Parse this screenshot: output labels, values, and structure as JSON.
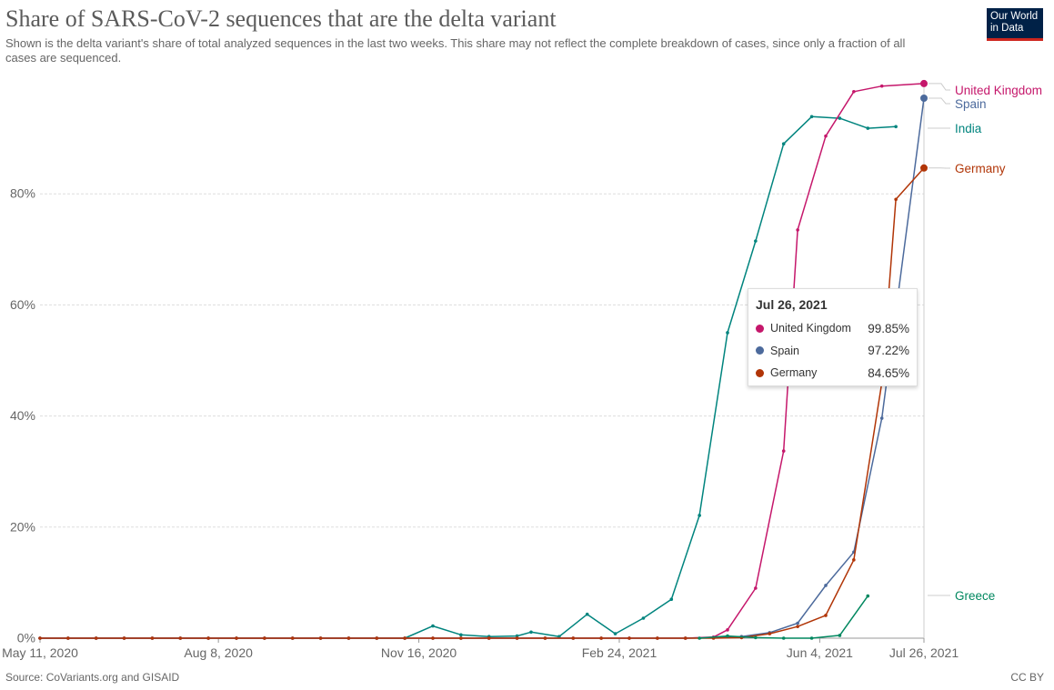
{
  "header": {
    "title": "Share of SARS-CoV-2 sequences that are the delta variant",
    "subtitle": "Shown is the delta variant's share of total analyzed sequences in the last two weeks. This share may not reflect the complete breakdown of cases, since only a fraction of all cases are sequenced.",
    "logo_line1": "Our World",
    "logo_line2": "in Data"
  },
  "footer": {
    "source": "Source: CoVariants.org and GISAID",
    "license": "CC BY"
  },
  "tooltip": {
    "date": "Jul 26, 2021",
    "rows": [
      {
        "name": "United Kingdom",
        "value": "99.85%",
        "color": "#c5176b"
      },
      {
        "name": "Spain",
        "value": "97.22%",
        "color": "#4c6a9c"
      },
      {
        "name": "Germany",
        "value": "84.65%",
        "color": "#b13507"
      }
    ]
  },
  "chart_data": {
    "type": "line",
    "ylim": [
      0,
      100
    ],
    "yticks": [
      0,
      20,
      40,
      60,
      80
    ],
    "ytick_labels": [
      "0%",
      "20%",
      "40%",
      "60%",
      "80%"
    ],
    "xlim": [
      "2020-05-11",
      "2021-07-26"
    ],
    "xticks": [
      "2020-05-11",
      "2020-08-08",
      "2020-11-16",
      "2021-02-24",
      "2021-06-04",
      "2021-07-26"
    ],
    "xtick_labels": [
      "May 11, 2020",
      "Aug 8, 2020",
      "Nov 16, 2020",
      "Feb 24, 2021",
      "Jun 4, 2021",
      "Jul 26, 2021"
    ],
    "grid": "horizontal dashed",
    "legend_placement": "right (line-end labels)",
    "hover_date": "2021-07-26",
    "series": [
      {
        "name": "India",
        "color": "#00847e",
        "points": [
          [
            "2020-05-11",
            0
          ],
          [
            "2020-05-25",
            0
          ],
          [
            "2020-06-08",
            0
          ],
          [
            "2020-06-22",
            0
          ],
          [
            "2020-07-06",
            0
          ],
          [
            "2020-07-20",
            0
          ],
          [
            "2020-08-03",
            0
          ],
          [
            "2020-08-17",
            0
          ],
          [
            "2020-08-31",
            0
          ],
          [
            "2020-09-14",
            0
          ],
          [
            "2020-09-28",
            0
          ],
          [
            "2020-10-12",
            0
          ],
          [
            "2020-10-26",
            0
          ],
          [
            "2020-11-09",
            0
          ],
          [
            "2020-11-23",
            2.2
          ],
          [
            "2020-12-07",
            0.6
          ],
          [
            "2020-12-21",
            0.3
          ],
          [
            "2021-01-04",
            0.4
          ],
          [
            "2021-01-11",
            1.1
          ],
          [
            "2021-01-25",
            0.3
          ],
          [
            "2021-02-08",
            4.3
          ],
          [
            "2021-02-22",
            0.8
          ],
          [
            "2021-03-08",
            3.6
          ],
          [
            "2021-03-22",
            7.0
          ],
          [
            "2021-04-05",
            22.1
          ],
          [
            "2021-04-19",
            55.0
          ],
          [
            "2021-05-03",
            71.5
          ],
          [
            "2021-05-17",
            89.0
          ],
          [
            "2021-05-31",
            93.9
          ],
          [
            "2021-06-14",
            93.6
          ],
          [
            "2021-06-28",
            91.8
          ],
          [
            "2021-07-12",
            92.1
          ]
        ]
      },
      {
        "name": "United Kingdom",
        "color": "#c5176b",
        "points": [
          [
            "2020-05-11",
            0
          ],
          [
            "2020-05-25",
            0
          ],
          [
            "2020-06-08",
            0
          ],
          [
            "2020-06-22",
            0
          ],
          [
            "2020-07-06",
            0
          ],
          [
            "2020-07-20",
            0
          ],
          [
            "2020-08-03",
            0
          ],
          [
            "2020-08-17",
            0
          ],
          [
            "2020-08-31",
            0
          ],
          [
            "2020-09-14",
            0
          ],
          [
            "2020-09-28",
            0
          ],
          [
            "2020-10-12",
            0
          ],
          [
            "2020-10-26",
            0
          ],
          [
            "2020-11-09",
            0
          ],
          [
            "2020-11-23",
            0
          ],
          [
            "2020-12-07",
            0
          ],
          [
            "2020-12-21",
            0
          ],
          [
            "2021-01-04",
            0
          ],
          [
            "2021-01-18",
            0
          ],
          [
            "2021-02-01",
            0
          ],
          [
            "2021-02-15",
            0
          ],
          [
            "2021-03-01",
            0
          ],
          [
            "2021-03-15",
            0
          ],
          [
            "2021-03-29",
            0
          ],
          [
            "2021-04-12",
            0.2
          ],
          [
            "2021-04-19",
            1.5
          ],
          [
            "2021-05-03",
            9.0
          ],
          [
            "2021-05-17",
            33.7
          ],
          [
            "2021-05-24",
            73.5
          ],
          [
            "2021-06-07",
            90.4
          ],
          [
            "2021-06-21",
            98.4
          ],
          [
            "2021-07-05",
            99.4
          ],
          [
            "2021-07-26",
            99.85
          ]
        ]
      },
      {
        "name": "Spain",
        "color": "#4c6a9c",
        "points": [
          [
            "2020-05-11",
            0
          ],
          [
            "2020-05-25",
            0
          ],
          [
            "2020-06-08",
            0
          ],
          [
            "2020-06-22",
            0
          ],
          [
            "2020-07-06",
            0
          ],
          [
            "2020-07-20",
            0
          ],
          [
            "2020-08-03",
            0
          ],
          [
            "2020-08-17",
            0
          ],
          [
            "2020-08-31",
            0
          ],
          [
            "2020-09-14",
            0
          ],
          [
            "2020-09-28",
            0
          ],
          [
            "2020-10-12",
            0
          ],
          [
            "2020-10-26",
            0
          ],
          [
            "2020-11-09",
            0
          ],
          [
            "2020-11-23",
            0
          ],
          [
            "2020-12-07",
            0
          ],
          [
            "2020-12-21",
            0
          ],
          [
            "2021-01-04",
            0
          ],
          [
            "2021-01-18",
            0
          ],
          [
            "2021-02-01",
            0
          ],
          [
            "2021-02-15",
            0
          ],
          [
            "2021-03-01",
            0
          ],
          [
            "2021-03-15",
            0
          ],
          [
            "2021-03-29",
            0
          ],
          [
            "2021-04-12",
            0.1
          ],
          [
            "2021-04-26",
            0.3
          ],
          [
            "2021-05-10",
            1.0
          ],
          [
            "2021-05-24",
            2.7
          ],
          [
            "2021-06-07",
            9.5
          ],
          [
            "2021-06-21",
            15.5
          ],
          [
            "2021-07-05",
            39.6
          ],
          [
            "2021-07-26",
            97.22
          ]
        ]
      },
      {
        "name": "Germany",
        "color": "#b13507",
        "points": [
          [
            "2020-05-11",
            0
          ],
          [
            "2020-05-25",
            0
          ],
          [
            "2020-06-08",
            0
          ],
          [
            "2020-06-22",
            0
          ],
          [
            "2020-07-06",
            0
          ],
          [
            "2020-07-20",
            0
          ],
          [
            "2020-08-03",
            0
          ],
          [
            "2020-08-17",
            0
          ],
          [
            "2020-08-31",
            0
          ],
          [
            "2020-09-14",
            0
          ],
          [
            "2020-09-28",
            0
          ],
          [
            "2020-10-12",
            0
          ],
          [
            "2020-10-26",
            0
          ],
          [
            "2020-11-09",
            0
          ],
          [
            "2020-11-23",
            0
          ],
          [
            "2020-12-07",
            0
          ],
          [
            "2020-12-21",
            0
          ],
          [
            "2021-01-04",
            0
          ],
          [
            "2021-01-18",
            0
          ],
          [
            "2021-02-01",
            0
          ],
          [
            "2021-02-15",
            0
          ],
          [
            "2021-03-01",
            0
          ],
          [
            "2021-03-15",
            0
          ],
          [
            "2021-03-29",
            0
          ],
          [
            "2021-04-12",
            0
          ],
          [
            "2021-04-26",
            0.1
          ],
          [
            "2021-05-10",
            0.8
          ],
          [
            "2021-05-24",
            2.1
          ],
          [
            "2021-06-07",
            4.1
          ],
          [
            "2021-06-21",
            14.1
          ],
          [
            "2021-07-05",
            46.0
          ],
          [
            "2021-07-12",
            79.0
          ],
          [
            "2021-07-26",
            84.65
          ]
        ]
      },
      {
        "name": "Greece",
        "color": "#00875f",
        "points": [
          [
            "2021-04-05",
            0
          ],
          [
            "2021-04-19",
            0.4
          ],
          [
            "2021-05-03",
            0.1
          ],
          [
            "2021-05-17",
            0
          ],
          [
            "2021-05-31",
            0
          ],
          [
            "2021-06-14",
            0.5
          ],
          [
            "2021-06-28",
            7.6
          ]
        ]
      }
    ],
    "end_labels": [
      {
        "name": "United Kingdom",
        "color": "#c5176b"
      },
      {
        "name": "Spain",
        "color": "#4c6a9c"
      },
      {
        "name": "India",
        "color": "#00847e"
      },
      {
        "name": "Germany",
        "color": "#b13507"
      },
      {
        "name": "Greece",
        "color": "#00875f"
      }
    ]
  }
}
